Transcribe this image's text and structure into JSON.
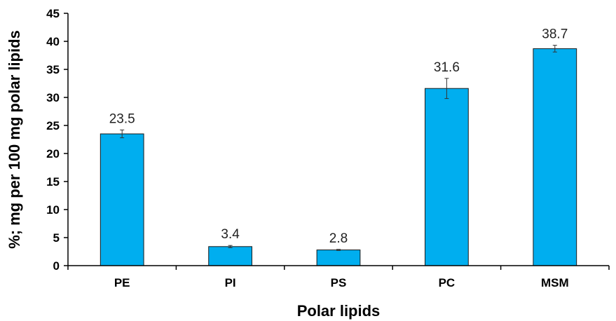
{
  "chart_data": {
    "type": "bar",
    "categories": [
      "PE",
      "PI",
      "PS",
      "PC",
      "MSM"
    ],
    "series": [
      {
        "values": [
          23.5,
          3.4,
          2.8,
          31.6,
          38.7
        ],
        "errors": [
          0.7,
          0.2,
          0.1,
          1.8,
          0.6
        ]
      }
    ],
    "data_labels": [
      "23.5",
      "3.4",
      "2.8",
      "31.6",
      "38.7"
    ],
    "xlabel": "Polar lipids",
    "ylabel": "%; mg per 100 mg polar lipids",
    "ylim": [
      0,
      45
    ],
    "yticks": [
      0,
      5,
      10,
      15,
      20,
      25,
      30,
      35,
      40,
      45
    ],
    "grid": false,
    "legend": "none",
    "bar_color": "#00AEEF",
    "bar_edge_color": "#1a1a1a"
  }
}
